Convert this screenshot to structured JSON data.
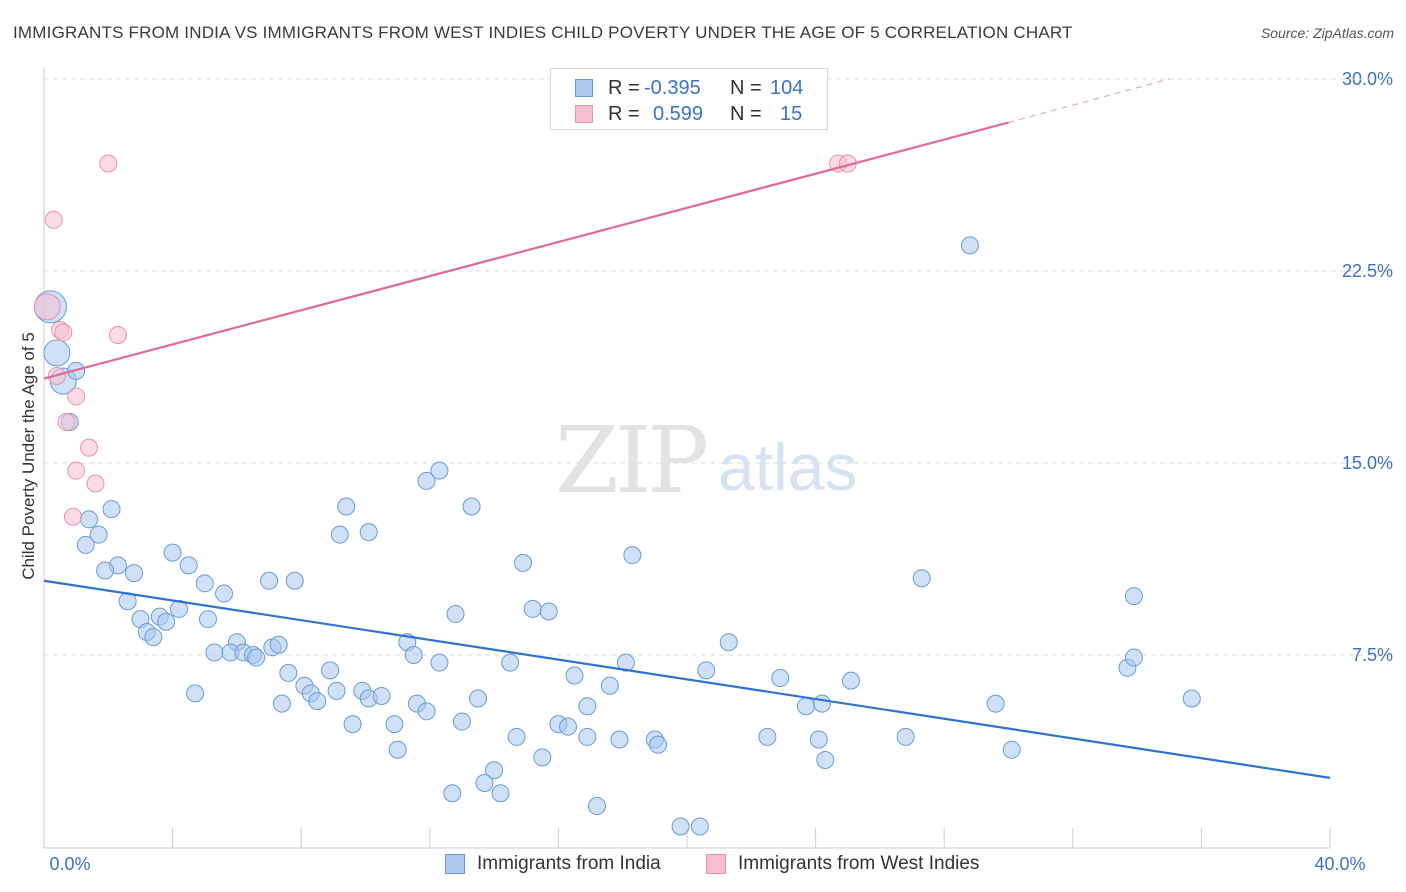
{
  "title": "IMMIGRANTS FROM INDIA VS IMMIGRANTS FROM WEST INDIES CHILD POVERTY UNDER THE AGE OF 5 CORRELATION CHART",
  "source": "Source: ZipAtlas.com",
  "watermark": {
    "zip": "ZIP",
    "atlas": "atlas"
  },
  "legend_top": [
    {
      "r_label": "R =",
      "r_value": "-0.395",
      "n_label": "N =",
      "n_value": "104",
      "color": "#aac8f0",
      "border": "#6a9bd8"
    },
    {
      "r_label": "R =",
      "r_value": "0.599",
      "n_label": "N =",
      "n_value": "15",
      "color": "#f8bfd2",
      "border": "#e892b0"
    }
  ],
  "legend_bottom": [
    {
      "label": "Immigrants from India",
      "color": "#aac8f0",
      "border": "#6a9bd8"
    },
    {
      "label": "Immigrants from West Indies",
      "color": "#f8bfd2",
      "border": "#e892b0"
    }
  ],
  "chart_data": {
    "type": "scatter",
    "title": "IMMIGRANTS FROM INDIA VS IMMIGRANTS FROM WEST INDIES CHILD POVERTY UNDER THE AGE OF 5 CORRELATION CHART",
    "xlabel": "",
    "ylabel": "Child Poverty Under the Age of 5",
    "xlim": [
      0,
      40
    ],
    "ylim": [
      0,
      31
    ],
    "x_tick_labels": [
      {
        "value": 0,
        "label": "0.0%"
      },
      {
        "value": 40,
        "label": "40.0%"
      }
    ],
    "y_tick_labels": [
      {
        "value": 7.5,
        "label": "7.5%"
      },
      {
        "value": 15.0,
        "label": "15.0%"
      },
      {
        "value": 22.5,
        "label": "22.5%"
      },
      {
        "value": 30.0,
        "label": "30.0%"
      }
    ],
    "grid": true,
    "series": [
      {
        "name": "Immigrants from India",
        "color": "#aac8f0",
        "edge": "#6a9bd8",
        "trend": {
          "x0": 0,
          "y0": 10.4,
          "x1": 40,
          "y1": 2.7,
          "color": "#2e72d2"
        },
        "points": [
          {
            "x": 0.2,
            "y": 21.1,
            "big": 2
          },
          {
            "x": 0.4,
            "y": 19.3,
            "big": 1
          },
          {
            "x": 0.6,
            "y": 18.2,
            "big": 1
          },
          {
            "x": 1.0,
            "y": 18.6,
            "big": 0
          },
          {
            "x": 0.8,
            "y": 16.6,
            "big": 0
          },
          {
            "x": 1.4,
            "y": 12.8,
            "big": 0
          },
          {
            "x": 2.1,
            "y": 13.2,
            "big": 0
          },
          {
            "x": 1.7,
            "y": 12.2,
            "big": 0
          },
          {
            "x": 1.3,
            "y": 11.8,
            "big": 0
          },
          {
            "x": 2.3,
            "y": 11.0,
            "big": 0
          },
          {
            "x": 1.9,
            "y": 10.8,
            "big": 0
          },
          {
            "x": 2.8,
            "y": 10.7,
            "big": 0
          },
          {
            "x": 4.0,
            "y": 11.5,
            "big": 0
          },
          {
            "x": 4.5,
            "y": 11.0,
            "big": 0
          },
          {
            "x": 5.0,
            "y": 10.3,
            "big": 0
          },
          {
            "x": 5.6,
            "y": 9.9,
            "big": 0
          },
          {
            "x": 2.6,
            "y": 9.6,
            "big": 0
          },
          {
            "x": 3.6,
            "y": 9.0,
            "big": 0
          },
          {
            "x": 3.8,
            "y": 8.8,
            "big": 0
          },
          {
            "x": 3.0,
            "y": 8.9,
            "big": 0
          },
          {
            "x": 4.2,
            "y": 9.3,
            "big": 0
          },
          {
            "x": 5.1,
            "y": 8.9,
            "big": 0
          },
          {
            "x": 3.2,
            "y": 8.4,
            "big": 0
          },
          {
            "x": 3.4,
            "y": 8.2,
            "big": 0
          },
          {
            "x": 6.0,
            "y": 8.0,
            "big": 0
          },
          {
            "x": 5.3,
            "y": 7.6,
            "big": 0
          },
          {
            "x": 5.8,
            "y": 7.6,
            "big": 0
          },
          {
            "x": 6.2,
            "y": 7.6,
            "big": 0
          },
          {
            "x": 6.5,
            "y": 7.5,
            "big": 0
          },
          {
            "x": 6.6,
            "y": 7.4,
            "big": 0
          },
          {
            "x": 7.1,
            "y": 7.8,
            "big": 0
          },
          {
            "x": 7.3,
            "y": 7.9,
            "big": 0
          },
          {
            "x": 7.0,
            "y": 10.4,
            "big": 0
          },
          {
            "x": 7.8,
            "y": 10.4,
            "big": 0
          },
          {
            "x": 9.2,
            "y": 12.2,
            "big": 0
          },
          {
            "x": 9.4,
            "y": 13.3,
            "big": 0
          },
          {
            "x": 10.1,
            "y": 12.3,
            "big": 0
          },
          {
            "x": 11.9,
            "y": 14.3,
            "big": 0
          },
          {
            "x": 12.3,
            "y": 14.7,
            "big": 0
          },
          {
            "x": 13.3,
            "y": 13.3,
            "big": 0
          },
          {
            "x": 11.3,
            "y": 8.0,
            "big": 0
          },
          {
            "x": 11.5,
            "y": 7.5,
            "big": 0
          },
          {
            "x": 12.3,
            "y": 7.2,
            "big": 0
          },
          {
            "x": 12.8,
            "y": 9.1,
            "big": 0
          },
          {
            "x": 7.6,
            "y": 6.8,
            "big": 0
          },
          {
            "x": 8.9,
            "y": 6.9,
            "big": 0
          },
          {
            "x": 8.1,
            "y": 6.3,
            "big": 0
          },
          {
            "x": 8.3,
            "y": 6.0,
            "big": 0
          },
          {
            "x": 8.5,
            "y": 5.7,
            "big": 0
          },
          {
            "x": 9.1,
            "y": 6.1,
            "big": 0
          },
          {
            "x": 9.9,
            "y": 6.1,
            "big": 0
          },
          {
            "x": 10.1,
            "y": 5.8,
            "big": 0
          },
          {
            "x": 10.5,
            "y": 5.9,
            "big": 0
          },
          {
            "x": 11.6,
            "y": 5.6,
            "big": 0
          },
          {
            "x": 11.9,
            "y": 5.3,
            "big": 0
          },
          {
            "x": 7.4,
            "y": 5.6,
            "big": 0
          },
          {
            "x": 4.7,
            "y": 6.0,
            "big": 0
          },
          {
            "x": 9.6,
            "y": 4.8,
            "big": 0
          },
          {
            "x": 10.9,
            "y": 4.8,
            "big": 0
          },
          {
            "x": 11.0,
            "y": 3.8,
            "big": 0
          },
          {
            "x": 13.0,
            "y": 4.9,
            "big": 0
          },
          {
            "x": 13.5,
            "y": 5.8,
            "big": 0
          },
          {
            "x": 14.5,
            "y": 7.2,
            "big": 0
          },
          {
            "x": 14.7,
            "y": 4.3,
            "big": 0
          },
          {
            "x": 15.5,
            "y": 3.5,
            "big": 0
          },
          {
            "x": 14.0,
            "y": 3.0,
            "big": 0
          },
          {
            "x": 13.7,
            "y": 2.5,
            "big": 0
          },
          {
            "x": 14.2,
            "y": 2.1,
            "big": 0
          },
          {
            "x": 12.7,
            "y": 2.1,
            "big": 0
          },
          {
            "x": 14.9,
            "y": 11.1,
            "big": 0
          },
          {
            "x": 15.2,
            "y": 9.3,
            "big": 0
          },
          {
            "x": 15.7,
            "y": 9.2,
            "big": 0
          },
          {
            "x": 16.0,
            "y": 4.8,
            "big": 0
          },
          {
            "x": 16.3,
            "y": 4.7,
            "big": 0
          },
          {
            "x": 16.9,
            "y": 4.3,
            "big": 0
          },
          {
            "x": 16.5,
            "y": 6.7,
            "big": 0
          },
          {
            "x": 16.9,
            "y": 5.5,
            "big": 0
          },
          {
            "x": 17.6,
            "y": 6.3,
            "big": 0
          },
          {
            "x": 17.9,
            "y": 4.2,
            "big": 0
          },
          {
            "x": 18.1,
            "y": 7.2,
            "big": 0
          },
          {
            "x": 18.3,
            "y": 11.4,
            "big": 0
          },
          {
            "x": 17.2,
            "y": 1.6,
            "big": 0
          },
          {
            "x": 19.0,
            "y": 4.2,
            "big": 0
          },
          {
            "x": 19.1,
            "y": 4.0,
            "big": 0
          },
          {
            "x": 20.6,
            "y": 6.9,
            "big": 0
          },
          {
            "x": 21.3,
            "y": 8.0,
            "big": 0
          },
          {
            "x": 19.8,
            "y": 0.8,
            "big": 0
          },
          {
            "x": 20.4,
            "y": 0.8,
            "big": 0
          },
          {
            "x": 22.5,
            "y": 4.3,
            "big": 0
          },
          {
            "x": 22.9,
            "y": 6.6,
            "big": 0
          },
          {
            "x": 23.7,
            "y": 5.5,
            "big": 0
          },
          {
            "x": 24.2,
            "y": 5.6,
            "big": 0
          },
          {
            "x": 24.1,
            "y": 4.2,
            "big": 0
          },
          {
            "x": 24.3,
            "y": 3.4,
            "big": 0
          },
          {
            "x": 25.1,
            "y": 6.5,
            "big": 0
          },
          {
            "x": 26.8,
            "y": 4.3,
            "big": 0
          },
          {
            "x": 27.3,
            "y": 10.5,
            "big": 0
          },
          {
            "x": 28.8,
            "y": 23.5,
            "big": 0
          },
          {
            "x": 29.6,
            "y": 5.6,
            "big": 0
          },
          {
            "x": 30.1,
            "y": 3.8,
            "big": 0
          },
          {
            "x": 33.7,
            "y": 7.0,
            "big": 0
          },
          {
            "x": 33.9,
            "y": 7.4,
            "big": 0
          },
          {
            "x": 33.9,
            "y": 9.8,
            "big": 0
          },
          {
            "x": 35.7,
            "y": 5.8,
            "big": 0
          }
        ]
      },
      {
        "name": "Immigrants from West Indies",
        "color": "#f8bfd2",
        "edge": "#e892b0",
        "trend": {
          "x0": 0,
          "y0": 18.3,
          "x1": 30.0,
          "y1": 28.3,
          "x_dash_end": 35.0,
          "y_dash_end": 30.0,
          "color": "#e06a95"
        },
        "points": [
          {
            "x": 0.1,
            "y": 21.1,
            "big": 1
          },
          {
            "x": 0.3,
            "y": 24.5,
            "big": 0
          },
          {
            "x": 0.5,
            "y": 20.2,
            "big": 0
          },
          {
            "x": 0.6,
            "y": 20.1,
            "big": 0
          },
          {
            "x": 0.4,
            "y": 18.4,
            "big": 0
          },
          {
            "x": 0.7,
            "y": 16.6,
            "big": 0
          },
          {
            "x": 1.0,
            "y": 17.6,
            "big": 0
          },
          {
            "x": 1.4,
            "y": 15.6,
            "big": 0
          },
          {
            "x": 1.0,
            "y": 14.7,
            "big": 0
          },
          {
            "x": 1.6,
            "y": 14.2,
            "big": 0
          },
          {
            "x": 0.9,
            "y": 12.9,
            "big": 0
          },
          {
            "x": 2.0,
            "y": 26.7,
            "big": 0
          },
          {
            "x": 2.3,
            "y": 20.0,
            "big": 0
          },
          {
            "x": 24.7,
            "y": 26.7,
            "big": 0
          },
          {
            "x": 25.0,
            "y": 26.7,
            "big": 0
          }
        ]
      }
    ]
  }
}
